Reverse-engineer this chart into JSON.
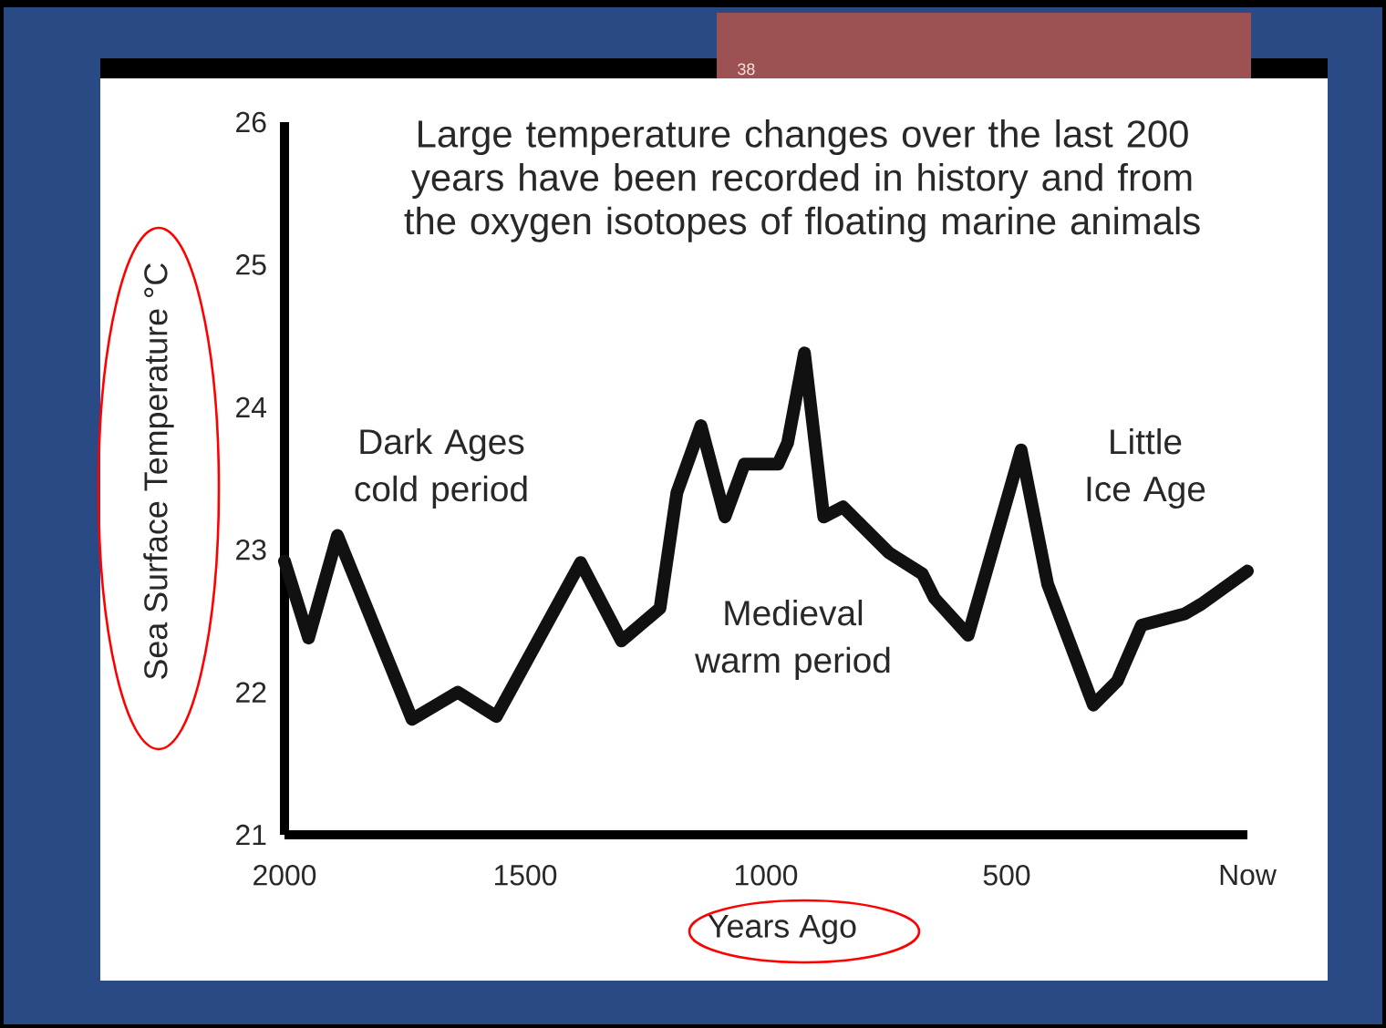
{
  "chart_data": {
    "type": "line",
    "title": "Large temperature changes over the last 200\nyears have been recorded in history and from\nthe oxygen isotopes of floating marine animals",
    "xlabel": "Years Ago",
    "ylabel": "Sea Surface Temperature °C",
    "x": [
      2000,
      1950,
      1890,
      1735,
      1640,
      1560,
      1385,
      1300,
      1220,
      1185,
      1135,
      1085,
      1045,
      975,
      955,
      920,
      880,
      840,
      745,
      675,
      650,
      580,
      470,
      415,
      320,
      270,
      220,
      130,
      95,
      0
    ],
    "values": [
      22.92,
      22.38,
      23.1,
      21.81,
      22.0,
      21.83,
      22.91,
      22.36,
      22.59,
      23.4,
      23.87,
      23.23,
      23.6,
      23.6,
      23.75,
      24.38,
      23.23,
      23.3,
      22.98,
      22.83,
      22.66,
      22.4,
      23.7,
      22.76,
      21.91,
      22.08,
      22.47,
      22.55,
      22.62,
      22.85
    ],
    "color": "#111111",
    "line_style": "solid",
    "xlim": [
      2000,
      0
    ],
    "xticks": [
      2000,
      1500,
      1000,
      500,
      {
        "value": 0,
        "label": "Now"
      }
    ],
    "ylim": [
      21,
      26
    ],
    "yticks": [
      21,
      22,
      23,
      24,
      25,
      26
    ],
    "annotations": [
      "Dark Ages\ncold period",
      "Medieval\nwarm period",
      "Little\nIce Age",
      "38"
    ]
  }
}
